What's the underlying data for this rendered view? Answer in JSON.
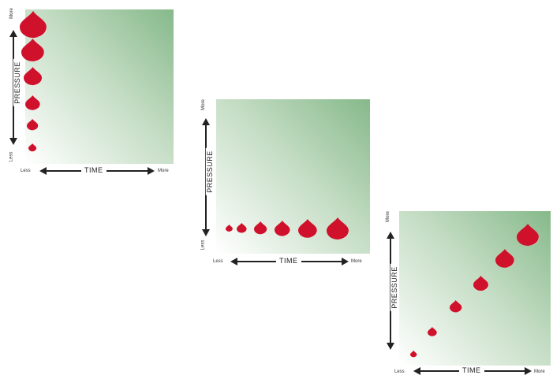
{
  "panels": [
    {
      "y_axis": {
        "label": "PRESSURE",
        "more": "More",
        "less": "Less"
      },
      "x_axis": {
        "label": "TIME",
        "less": "Less",
        "more": "More"
      },
      "drops": [
        {
          "time": 0.05,
          "pressure": 0.95,
          "size": 1.0
        },
        {
          "time": 0.05,
          "pressure": 0.76,
          "size": 0.85
        },
        {
          "time": 0.05,
          "pressure": 0.57,
          "size": 0.68
        },
        {
          "time": 0.05,
          "pressure": 0.38,
          "size": 0.55
        },
        {
          "time": 0.05,
          "pressure": 0.22,
          "size": 0.42
        },
        {
          "time": 0.05,
          "pressure": 0.05,
          "size": 0.3
        }
      ]
    },
    {
      "y_axis": {
        "label": "PRESSURE",
        "more": "More",
        "less": "Less"
      },
      "x_axis": {
        "label": "TIME",
        "less": "Less",
        "more": "More"
      },
      "drops": [
        {
          "time": 0.04,
          "pressure": 0.12,
          "size": 0.32
        },
        {
          "time": 0.14,
          "pressure": 0.12,
          "size": 0.45
        },
        {
          "time": 0.29,
          "pressure": 0.12,
          "size": 0.58
        },
        {
          "time": 0.46,
          "pressure": 0.12,
          "size": 0.7
        },
        {
          "time": 0.66,
          "pressure": 0.12,
          "size": 0.85
        },
        {
          "time": 0.9,
          "pressure": 0.12,
          "size": 1.0
        }
      ]
    },
    {
      "y_axis": {
        "label": "PRESSURE",
        "more": "More",
        "less": "Less"
      },
      "x_axis": {
        "label": "TIME",
        "less": "Less",
        "more": "More"
      },
      "drops": [
        {
          "time": 0.06,
          "pressure": 0.04,
          "size": 0.3
        },
        {
          "time": 0.2,
          "pressure": 0.2,
          "size": 0.42
        },
        {
          "time": 0.38,
          "pressure": 0.38,
          "size": 0.55
        },
        {
          "time": 0.57,
          "pressure": 0.55,
          "size": 0.68
        },
        {
          "time": 0.75,
          "pressure": 0.73,
          "size": 0.85
        },
        {
          "time": 0.92,
          "pressure": 0.9,
          "size": 1.0
        }
      ]
    }
  ],
  "colors": {
    "drop": "#d0112b",
    "drop_highlight": "#ffffff",
    "plot_top": "#86b98a",
    "plot_bottom": "#ffffff"
  }
}
